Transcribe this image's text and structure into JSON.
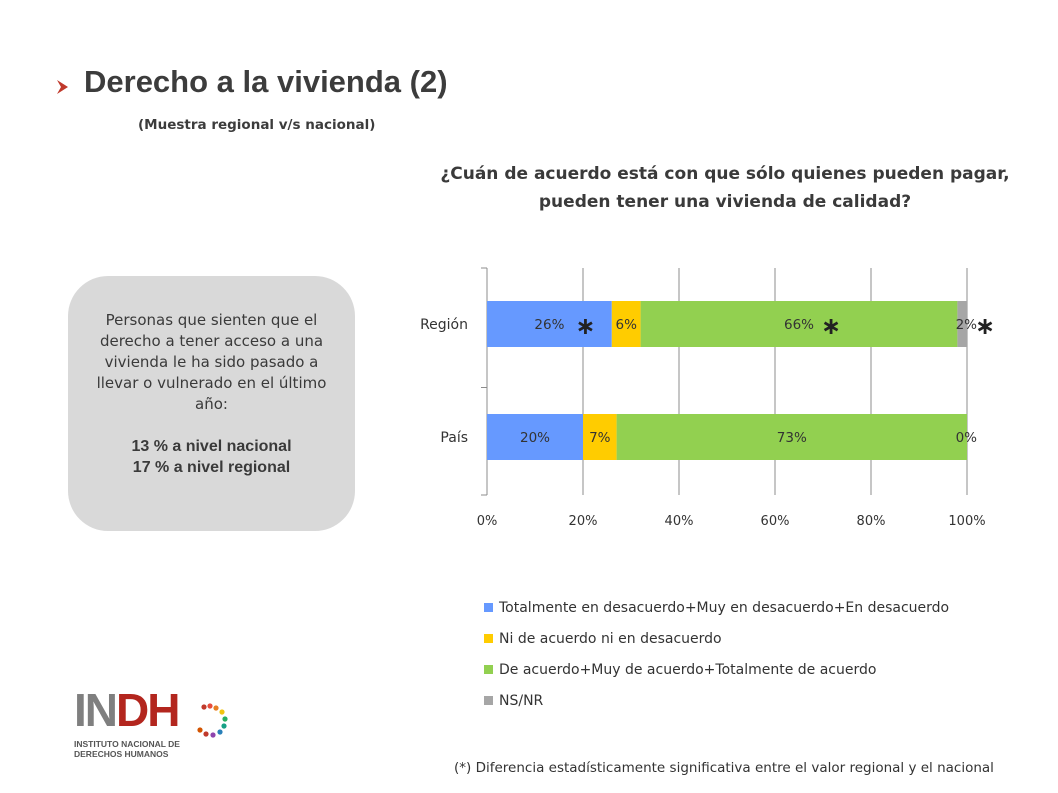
{
  "header": {
    "title": "Derecho a la vivienda (2)",
    "subtitle": "(Muestra regional v/s nacional)",
    "accent_color": "#c0392b"
  },
  "question": {
    "line1": "¿Cuán de acuerdo está con que sólo quienes pueden pagar,",
    "line2": "pueden tener una vivienda de calidad?"
  },
  "info_box": {
    "description": "Personas que sienten que el derecho a tener acceso a una vivienda le ha sido pasado a llevar o vulnerado en el último año:",
    "stat_national": "13 % a nivel nacional",
    "stat_regional": "17 % a nivel regional"
  },
  "chart_data": {
    "type": "bar",
    "orientation": "horizontal",
    "stacked": true,
    "categories": [
      "Región",
      "País"
    ],
    "series": [
      {
        "name": "Totalmente en desacuerdo+Muy en desacuerdo+En desacuerdo",
        "color": "#6699ff",
        "values": [
          26,
          20
        ],
        "labels": [
          "26%",
          "20%"
        ],
        "significant": [
          true,
          false
        ]
      },
      {
        "name": "Ni de acuerdo ni en desacuerdo",
        "color": "#ffcc00",
        "values": [
          6,
          7
        ],
        "labels": [
          "6%",
          "7%"
        ],
        "significant": [
          false,
          false
        ]
      },
      {
        "name": "De acuerdo+Muy de acuerdo+Totalmente de acuerdo",
        "color": "#92d050",
        "values": [
          66,
          73
        ],
        "labels": [
          "66%",
          "73%"
        ],
        "significant": [
          true,
          false
        ]
      },
      {
        "name": "NS/NR",
        "color": "#a6a6a6",
        "values": [
          2,
          0
        ],
        "labels": [
          "2%",
          "0%"
        ],
        "significant": [
          true,
          false
        ]
      }
    ],
    "x_ticks": [
      "0%",
      "20%",
      "40%",
      "60%",
      "80%",
      "100%"
    ],
    "xlim": [
      0,
      100
    ],
    "grid": true,
    "significance_marker": "∗",
    "legend_position": "bottom"
  },
  "logo": {
    "wordmark": "INDH",
    "line1": "INSTITUTO NACIONAL DE",
    "line2": "DERECHOS HUMANOS"
  },
  "footnote": "(*) Diferencia estadísticamente significativa entre el valor regional y el nacional"
}
